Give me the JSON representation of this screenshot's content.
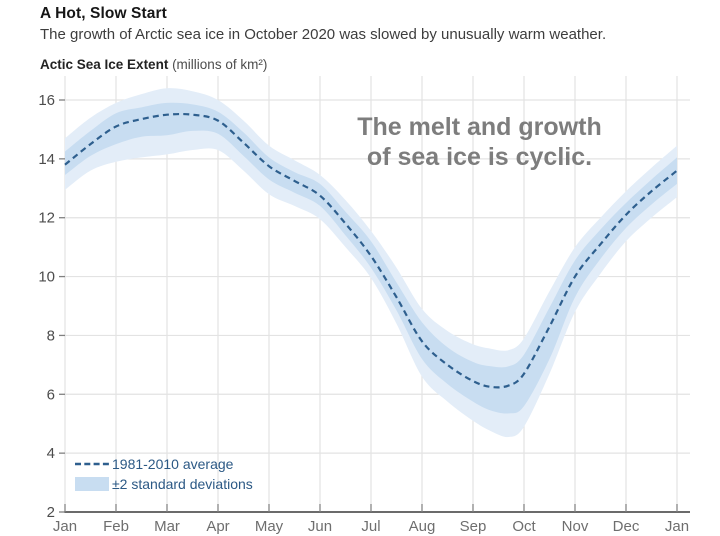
{
  "header": {
    "title": "A Hot, Slow Start",
    "subtitle": "The growth of Arctic sea ice in October 2020 was slowed by unusually warm weather.",
    "axis_caption_bold": "Actic Sea Ice Extent",
    "axis_caption_units": " (millions of km²)"
  },
  "annotation": {
    "line1": "The melt and growth",
    "line2": "of sea ice is cyclic."
  },
  "legend": {
    "line_label": "1981-2010 average",
    "band_label": "±2 standard deviations"
  },
  "colors": {
    "title_text": "#161616",
    "subtitle_text": "#3d3d3d",
    "caption_bold_text": "#232323",
    "caption_units_text": "#4d4d4d",
    "annotation_text": "#7d7d7d",
    "legend_text": "#2c5985",
    "line": "#2e5f8e",
    "band_inner": "#c8ddf1",
    "band_outer": "#e3edf8",
    "grid": "#e3e3e3",
    "axis": "#3a3a3a",
    "tick": "#808080",
    "tick_text_y": "#4c4c4c",
    "tick_text_x": "#6e6e6e"
  },
  "chart_data": {
    "type": "area",
    "title": "A Hot, Slow Start",
    "subtitle": "The growth of Arctic sea ice in October 2020 was slowed by unusually warm weather.",
    "ylabel": "Actic Sea Ice Extent (millions of km²)",
    "xlabel": "",
    "grid": true,
    "legend_position": "bottom-left",
    "x_tick_labels": [
      "Jan",
      "Feb",
      "Mar",
      "Apr",
      "May",
      "Jun",
      "Jul",
      "Aug",
      "Sep",
      "Oct",
      "Nov",
      "Dec",
      "Jan"
    ],
    "y_ticks": [
      2,
      4,
      6,
      8,
      10,
      12,
      14,
      16
    ],
    "ylim": [
      2,
      16.6
    ],
    "x_range_months": [
      0,
      12
    ],
    "x_months": [
      0,
      0.5,
      1,
      1.5,
      2,
      2.5,
      3,
      3.5,
      4,
      4.5,
      5,
      5.5,
      6,
      6.5,
      7,
      7.5,
      8,
      8.35,
      8.7,
      9,
      9.5,
      10,
      10.5,
      11,
      11.5,
      12
    ],
    "series": [
      {
        "name": "1981-2010 average",
        "style": "dashed-line",
        "values": [
          13.8,
          14.5,
          15.1,
          15.35,
          15.5,
          15.5,
          15.3,
          14.55,
          13.75,
          13.25,
          12.75,
          11.8,
          10.7,
          9.3,
          7.8,
          7.0,
          6.45,
          6.25,
          6.3,
          6.7,
          8.3,
          10.0,
          11.1,
          12.1,
          12.9,
          13.6
        ]
      },
      {
        "name": "±2 standard deviations",
        "style": "band-outer",
        "upper": [
          14.7,
          15.4,
          15.9,
          16.2,
          16.4,
          16.3,
          16.0,
          15.3,
          14.45,
          13.95,
          13.45,
          12.6,
          11.55,
          10.3,
          8.9,
          8.15,
          7.7,
          7.55,
          7.5,
          7.9,
          9.5,
          11.0,
          12.0,
          12.9,
          13.7,
          14.45
        ],
        "lower": [
          12.95,
          13.6,
          13.9,
          14.05,
          14.15,
          14.3,
          14.3,
          13.6,
          12.8,
          12.4,
          11.95,
          11.0,
          9.95,
          8.4,
          6.6,
          5.75,
          5.1,
          4.75,
          4.55,
          4.9,
          6.7,
          8.8,
          10.1,
          11.2,
          12.0,
          12.7
        ]
      },
      {
        "name": "inner band (±1 standard deviation)",
        "style": "band-inner",
        "upper": [
          14.25,
          14.95,
          15.55,
          15.75,
          15.9,
          15.85,
          15.6,
          14.9,
          14.05,
          13.55,
          13.15,
          12.2,
          11.2,
          9.8,
          8.45,
          7.6,
          7.1,
          6.95,
          6.95,
          7.35,
          8.95,
          10.55,
          11.6,
          12.5,
          13.3,
          14.05
        ],
        "lower": [
          13.45,
          14.1,
          14.5,
          14.75,
          14.8,
          14.95,
          14.85,
          14.1,
          13.3,
          12.85,
          12.4,
          11.4,
          10.3,
          8.85,
          7.2,
          6.35,
          5.75,
          5.45,
          5.35,
          5.6,
          7.2,
          9.3,
          10.6,
          11.65,
          12.45,
          13.15
        ]
      }
    ]
  }
}
